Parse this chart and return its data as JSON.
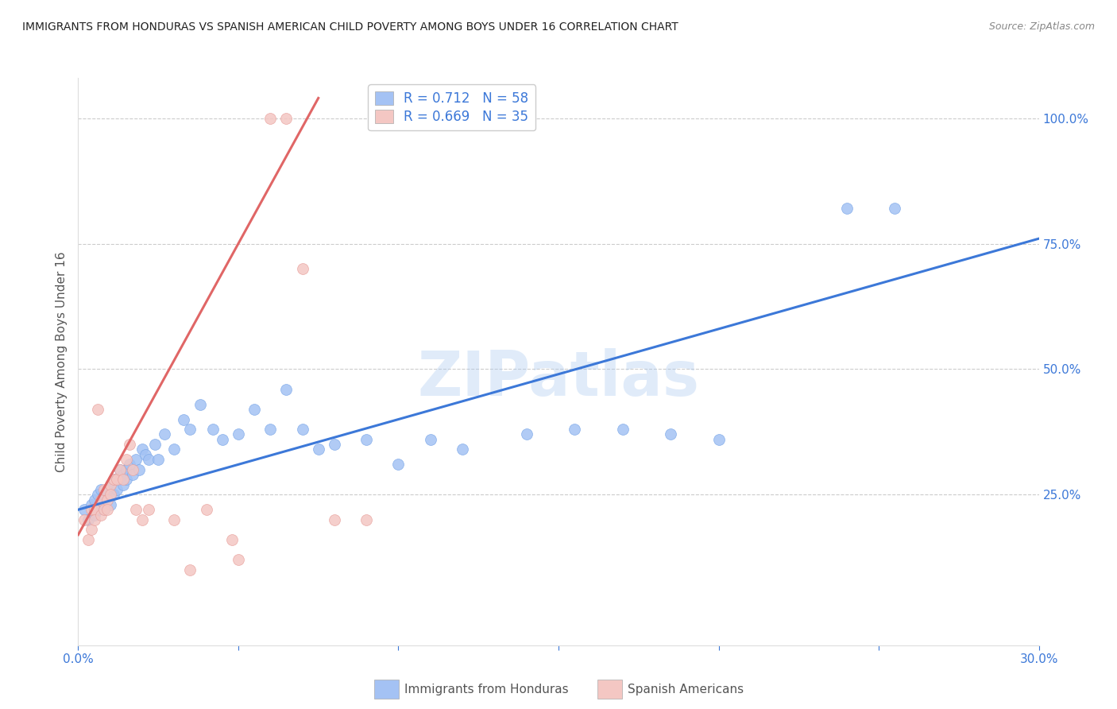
{
  "title": "IMMIGRANTS FROM HONDURAS VS SPANISH AMERICAN CHILD POVERTY AMONG BOYS UNDER 16 CORRELATION CHART",
  "source": "Source: ZipAtlas.com",
  "ylabel": "Child Poverty Among Boys Under 16",
  "watermark": "ZIPatlas",
  "xlim": [
    0.0,
    0.3
  ],
  "ylim": [
    -0.05,
    1.08
  ],
  "xticks": [
    0.0,
    0.05,
    0.1,
    0.15,
    0.2,
    0.25,
    0.3
  ],
  "xticklabels": [
    "0.0%",
    "",
    "",
    "",
    "",
    "",
    "30.0%"
  ],
  "yticks_right": [
    0.25,
    0.5,
    0.75,
    1.0
  ],
  "ytick_right_labels": [
    "25.0%",
    "50.0%",
    "75.0%",
    "100.0%"
  ],
  "blue_R": 0.712,
  "blue_N": 58,
  "pink_R": 0.669,
  "pink_N": 35,
  "blue_color": "#a4c2f4",
  "pink_color": "#f4c7c3",
  "blue_line_color": "#3c78d8",
  "pink_line_color": "#e06666",
  "background_color": "#ffffff",
  "grid_color": "#c0c0c0",
  "axis_color": "#3c78d8",
  "title_color": "#222222",
  "legend_label_blue": "Immigrants from Honduras",
  "legend_label_pink": "Spanish Americans",
  "blue_x": [
    0.002,
    0.003,
    0.004,
    0.005,
    0.005,
    0.006,
    0.006,
    0.007,
    0.007,
    0.008,
    0.008,
    0.009,
    0.009,
    0.01,
    0.01,
    0.011,
    0.011,
    0.012,
    0.013,
    0.013,
    0.014,
    0.014,
    0.015,
    0.015,
    0.016,
    0.017,
    0.018,
    0.019,
    0.02,
    0.021,
    0.022,
    0.024,
    0.025,
    0.027,
    0.03,
    0.033,
    0.035,
    0.038,
    0.042,
    0.045,
    0.05,
    0.055,
    0.06,
    0.065,
    0.07,
    0.075,
    0.08,
    0.09,
    0.1,
    0.11,
    0.12,
    0.14,
    0.155,
    0.17,
    0.185,
    0.2,
    0.24,
    0.255
  ],
  "blue_y": [
    0.22,
    0.2,
    0.23,
    0.21,
    0.24,
    0.22,
    0.25,
    0.23,
    0.26,
    0.22,
    0.25,
    0.24,
    0.26,
    0.23,
    0.27,
    0.25,
    0.28,
    0.26,
    0.28,
    0.3,
    0.27,
    0.29,
    0.28,
    0.3,
    0.31,
    0.29,
    0.32,
    0.3,
    0.34,
    0.33,
    0.32,
    0.35,
    0.32,
    0.37,
    0.34,
    0.4,
    0.38,
    0.43,
    0.38,
    0.36,
    0.37,
    0.42,
    0.38,
    0.46,
    0.38,
    0.34,
    0.35,
    0.36,
    0.31,
    0.36,
    0.34,
    0.37,
    0.38,
    0.38,
    0.37,
    0.36,
    0.82,
    0.82
  ],
  "pink_x": [
    0.002,
    0.003,
    0.004,
    0.004,
    0.005,
    0.005,
    0.006,
    0.007,
    0.007,
    0.008,
    0.008,
    0.009,
    0.009,
    0.01,
    0.01,
    0.011,
    0.012,
    0.013,
    0.014,
    0.015,
    0.016,
    0.017,
    0.018,
    0.02,
    0.022,
    0.03,
    0.035,
    0.04,
    0.048,
    0.05,
    0.06,
    0.065,
    0.07,
    0.08,
    0.09
  ],
  "pink_y": [
    0.2,
    0.16,
    0.22,
    0.18,
    0.22,
    0.2,
    0.42,
    0.24,
    0.21,
    0.22,
    0.26,
    0.24,
    0.22,
    0.27,
    0.25,
    0.28,
    0.28,
    0.3,
    0.28,
    0.32,
    0.35,
    0.3,
    0.22,
    0.2,
    0.22,
    0.2,
    0.1,
    0.22,
    0.16,
    0.12,
    1.0,
    1.0,
    0.7,
    0.2,
    0.2
  ],
  "blue_trend": [
    0.0,
    0.3
  ],
  "blue_trend_y": [
    0.22,
    0.76
  ],
  "pink_trend": [
    0.0,
    0.075
  ],
  "pink_trend_y": [
    0.17,
    1.04
  ]
}
